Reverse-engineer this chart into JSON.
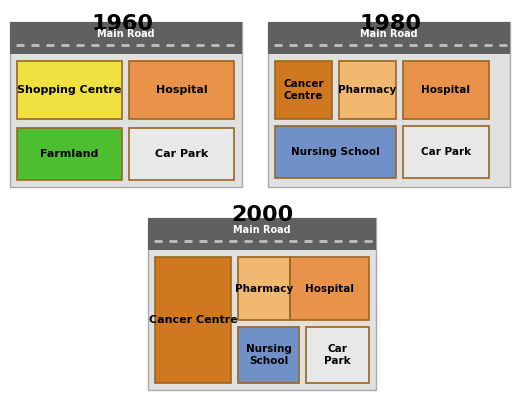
{
  "title_1960": "1960",
  "title_1980": "1980",
  "title_2000": "2000",
  "road_label": "Main Road",
  "road_color": "#606060",
  "road_dash_color": "#c0c0c0",
  "panel_bg": "#e0e0e0",
  "colors": {
    "shopping_centre": "#f0e040",
    "hospital": "#e8924a",
    "farmland": "#4cbe30",
    "car_park": "#e8e8e8",
    "cancer_centre": "#d07820",
    "pharmacy": "#f0b870",
    "nursing_school": "#7090c8"
  }
}
